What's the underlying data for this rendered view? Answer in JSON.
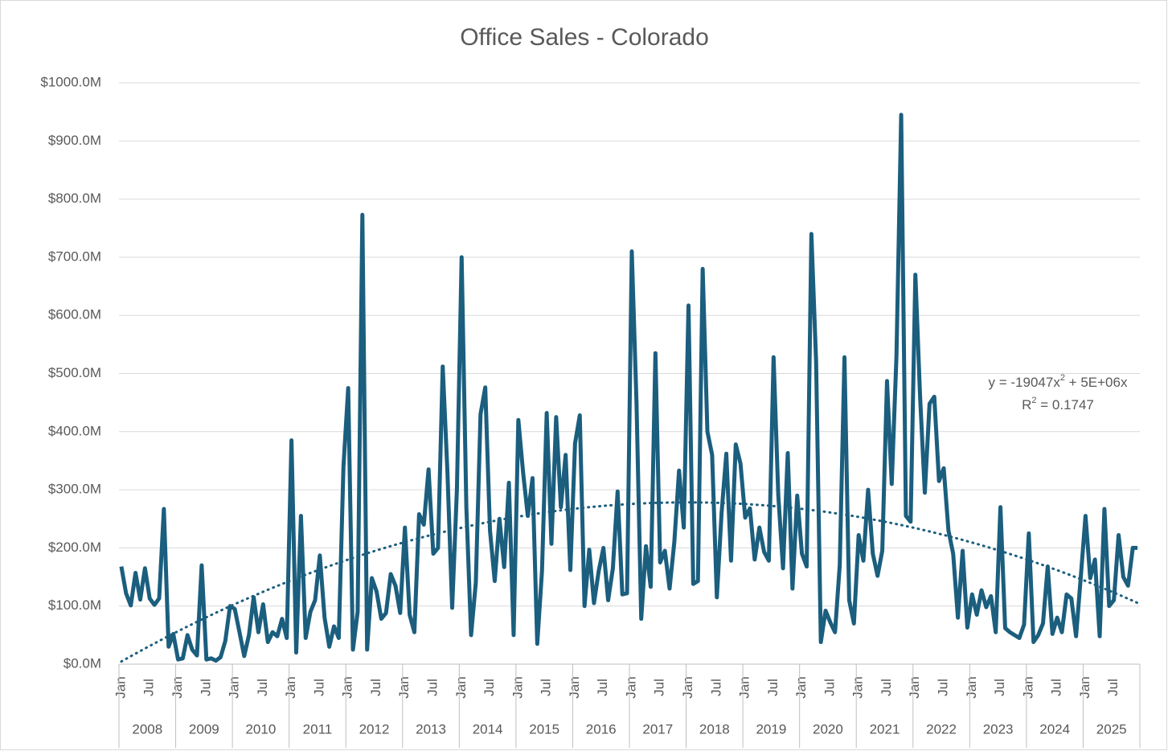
{
  "chart_data": {
    "type": "line",
    "title": "Office Sales - Colorado",
    "categories": [
      "Jan",
      null,
      null,
      null,
      null,
      null,
      "Jul",
      null,
      null,
      null,
      null,
      null,
      "Jan",
      null,
      null,
      null,
      null,
      null,
      "Jul",
      null,
      null,
      null,
      null,
      null,
      "Jan",
      null,
      null,
      null,
      null,
      null,
      "Jul",
      null,
      null,
      null,
      null,
      null,
      "Jan",
      null,
      null,
      null,
      null,
      null,
      "Jul",
      null,
      null,
      null,
      null,
      null,
      "Jan",
      null,
      null,
      null,
      null,
      null,
      "Jul",
      null,
      null,
      null,
      null,
      null,
      "Jan",
      null,
      null,
      null,
      null,
      null,
      "Jul",
      null,
      null,
      null,
      null,
      null,
      "Jan",
      null,
      null,
      null,
      null,
      null,
      "Jul",
      null,
      null,
      null,
      null,
      null,
      "Jan",
      null,
      null,
      null,
      null,
      null,
      "Jul",
      null,
      null,
      null,
      null,
      null,
      "Jan",
      null,
      null,
      null,
      null,
      null,
      "Jul",
      null,
      null,
      null,
      null,
      null,
      "Jan",
      null,
      null,
      null,
      null,
      null,
      "Jul",
      null,
      null,
      null,
      null,
      null,
      "Jan",
      null,
      null,
      null,
      null,
      null,
      "Jul",
      null,
      null,
      null,
      null,
      null,
      "Jan",
      null,
      null,
      null,
      null,
      null,
      "Jul",
      null,
      null,
      null,
      null,
      null,
      "Jan",
      null,
      null,
      null,
      null,
      null,
      "Jul",
      null,
      null,
      null,
      null,
      null,
      "Jan",
      null,
      null,
      null,
      null,
      null,
      "Jul",
      null,
      null,
      null,
      null,
      null,
      "Jan",
      null,
      null,
      null,
      null,
      null,
      "Jul",
      null,
      null,
      null,
      null,
      null,
      "Jan",
      null,
      null,
      null,
      null,
      null,
      "Jul",
      null,
      null,
      null,
      null,
      null,
      "Jan",
      null,
      null,
      null,
      null,
      null,
      "Jul",
      null,
      null,
      null,
      null,
      null,
      "Jan",
      null,
      null,
      null,
      null,
      null,
      "Jul",
      null,
      null,
      null,
      null,
      null
    ],
    "groups": [
      "2008",
      "2009",
      "2010",
      "2011",
      "2012",
      "2013",
      "2014",
      "2015",
      "2016",
      "2017",
      "2018",
      "2019",
      "2020",
      "2021",
      "2022",
      "2023",
      "2024",
      "2025"
    ],
    "series": [
      {
        "name": "Office Sales",
        "color": "#1b5e7e",
        "values": [
          168,
          122,
          101,
          157,
          111,
          165,
          113,
          102,
          113,
          267,
          30,
          52,
          8,
          10,
          50,
          25,
          15,
          170,
          8,
          10,
          6,
          12,
          40,
          100,
          95,
          55,
          14,
          50,
          115,
          55,
          103,
          38,
          55,
          48,
          78,
          45,
          385,
          20,
          255,
          45,
          90,
          110,
          187,
          80,
          30,
          65,
          45,
          340,
          475,
          25,
          90,
          773,
          25,
          148,
          125,
          78,
          88,
          155,
          135,
          88,
          235,
          85,
          55,
          258,
          240,
          335,
          190,
          200,
          512,
          330,
          97,
          300,
          700,
          270,
          50,
          140,
          430,
          476,
          230,
          143,
          250,
          167,
          312,
          50,
          420,
          330,
          255,
          320,
          35,
          160,
          432,
          207,
          425,
          270,
          360,
          162,
          380,
          428,
          100,
          197,
          105,
          160,
          200,
          110,
          165,
          297,
          120,
          122,
          710,
          450,
          78,
          203,
          133,
          535,
          175,
          195,
          130,
          210,
          333,
          235,
          617,
          138,
          143,
          680,
          400,
          360,
          115,
          260,
          362,
          178,
          378,
          345,
          252,
          268,
          180,
          235,
          193,
          178,
          528,
          290,
          165,
          363,
          130,
          290,
          190,
          168,
          740,
          520,
          38,
          92,
          72,
          55,
          170,
          528,
          110,
          70,
          222,
          178,
          300,
          190,
          152,
          195,
          487,
          310,
          530,
          945,
          255,
          245,
          670,
          460,
          295,
          448,
          460,
          315,
          337,
          230,
          190,
          80,
          195,
          63,
          120,
          85,
          127,
          98,
          117,
          55,
          270,
          62,
          55,
          50,
          45,
          68,
          225,
          38,
          50,
          70,
          168,
          52,
          80,
          55,
          120,
          113,
          48,
          150,
          255,
          148,
          180,
          48,
          267,
          100,
          110,
          222,
          150,
          135,
          200,
          200
        ]
      }
    ],
    "trendline": {
      "type": "polynomial",
      "equation": [
        "y = -19047x",
        "2",
        " + 5E+06x"
      ],
      "r_squared": [
        "R",
        "2",
        " = 0.1747"
      ]
    },
    "ylim": [
      0,
      1000
    ],
    "yticks": [
      {
        "value": 0,
        "label": "$0.0M"
      },
      {
        "value": 100,
        "label": "$100.0M"
      },
      {
        "value": 200,
        "label": "$200.0M"
      },
      {
        "value": 300,
        "label": "$300.0M"
      },
      {
        "value": 400,
        "label": "$400.0M"
      },
      {
        "value": 500,
        "label": "$500.0M"
      },
      {
        "value": 600,
        "label": "$600.0M"
      },
      {
        "value": 700,
        "label": "$700.0M"
      },
      {
        "value": 800,
        "label": "$800.0M"
      },
      {
        "value": 900,
        "label": "$900.0M"
      },
      {
        "value": 1000,
        "label": "$1000.0M"
      }
    ],
    "grid": true
  }
}
